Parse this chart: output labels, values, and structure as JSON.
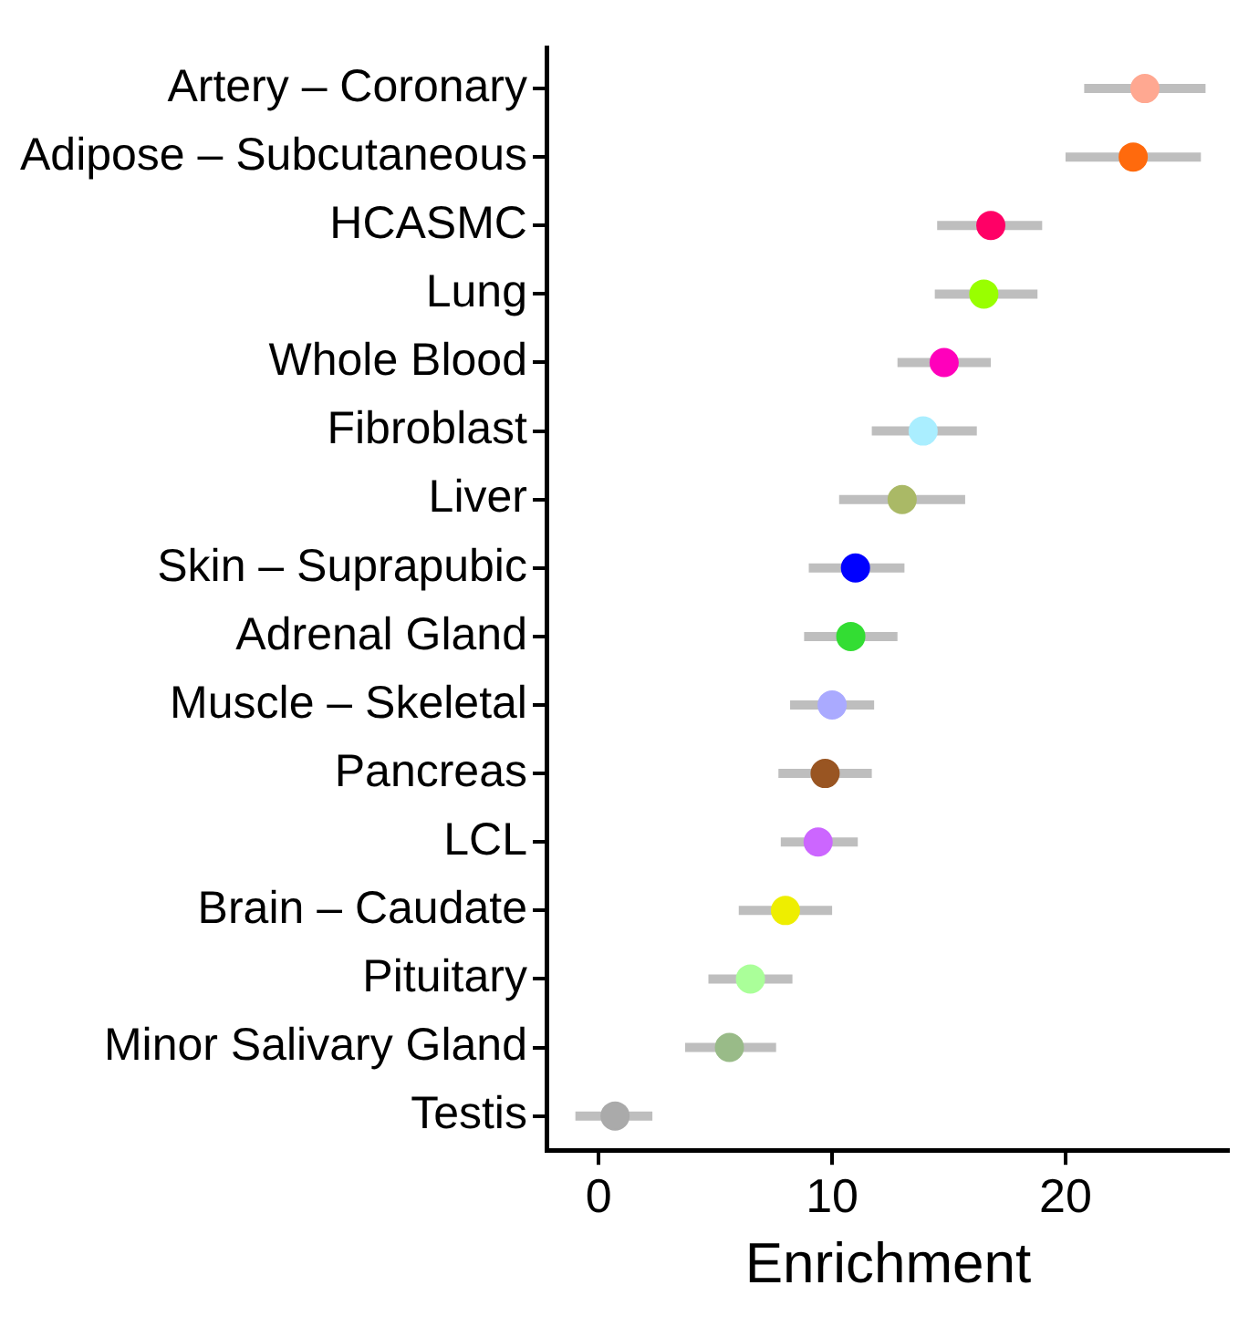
{
  "chart_data": {
    "type": "scatter",
    "orientation": "horizontal",
    "xlabel": "Enrichment",
    "categories": [
      "Artery – Coronary",
      "Adipose – Subcutaneous",
      "HCASMC",
      "Lung",
      "Whole Blood",
      "Fibroblast",
      "Liver",
      "Skin – Suprapubic",
      "Adrenal Gland",
      "Muscle – Skeletal",
      "Pancreas",
      "LCL",
      "Brain – Caudate",
      "Pituitary",
      "Minor Salivary Gland",
      "Testis"
    ],
    "values": [
      23.4,
      22.9,
      16.8,
      16.5,
      14.8,
      13.9,
      13.0,
      11.0,
      10.8,
      10.0,
      9.7,
      9.4,
      8.0,
      6.5,
      5.6,
      0.7
    ],
    "errors": [
      [
        20.8,
        26.0
      ],
      [
        20.0,
        25.8
      ],
      [
        14.5,
        19.0
      ],
      [
        14.4,
        18.8
      ],
      [
        12.8,
        16.8
      ],
      [
        11.7,
        16.2
      ],
      [
        10.3,
        15.7
      ],
      [
        9.0,
        13.1
      ],
      [
        8.8,
        12.8
      ],
      [
        8.2,
        11.8
      ],
      [
        7.7,
        11.7
      ],
      [
        7.8,
        11.1
      ],
      [
        6.0,
        10.0
      ],
      [
        4.7,
        8.3
      ],
      [
        3.7,
        7.6
      ],
      [
        -1.0,
        2.3
      ]
    ],
    "colors": [
      "#ffa891",
      "#ff6a0d",
      "#ff0066",
      "#99ff00",
      "#ff00bb",
      "#aaeeff",
      "#aab966",
      "#0000ff",
      "#33dd33",
      "#aaaaff",
      "#995522",
      "#cc66ff",
      "#eeee00",
      "#aaff99",
      "#99bb88",
      "#aaaaaa"
    ],
    "xlim": [
      -2.2,
      27
    ],
    "xticks": [
      0,
      10,
      20
    ],
    "grid": false,
    "legend": false,
    "marker": "circle"
  }
}
